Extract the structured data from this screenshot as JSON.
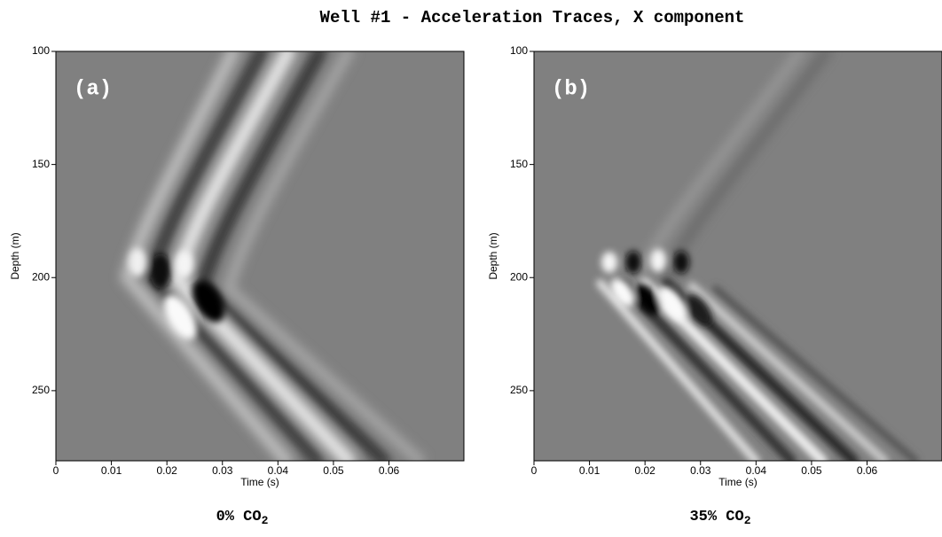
{
  "title": "Well #1 - Acceleration Traces, X component",
  "chart_data": [
    {
      "type": "image",
      "panel_label": "(a)",
      "caption": "0% CO",
      "caption_subscript": "2",
      "x_label": "Time (s)",
      "y_label": "Depth (m)",
      "xlim": [
        0,
        0.0735
      ],
      "ylim": [
        100,
        281
      ],
      "y_inverted": true,
      "xticks": [
        0,
        0.01,
        0.02,
        0.03,
        0.04,
        0.05,
        0.06
      ],
      "yticks": [
        100,
        150,
        200,
        250
      ]
    },
    {
      "type": "image",
      "panel_label": "(b)",
      "caption": "35% CO",
      "caption_subscript": "2",
      "x_label": "Time (s)",
      "y_label": "Depth (m)",
      "xlim": [
        0,
        0.0735
      ],
      "ylim": [
        100,
        281
      ],
      "y_inverted": true,
      "xticks": [
        0,
        0.01,
        0.02,
        0.03,
        0.04,
        0.05,
        0.06
      ],
      "yticks": [
        100,
        150,
        200,
        250
      ]
    }
  ]
}
